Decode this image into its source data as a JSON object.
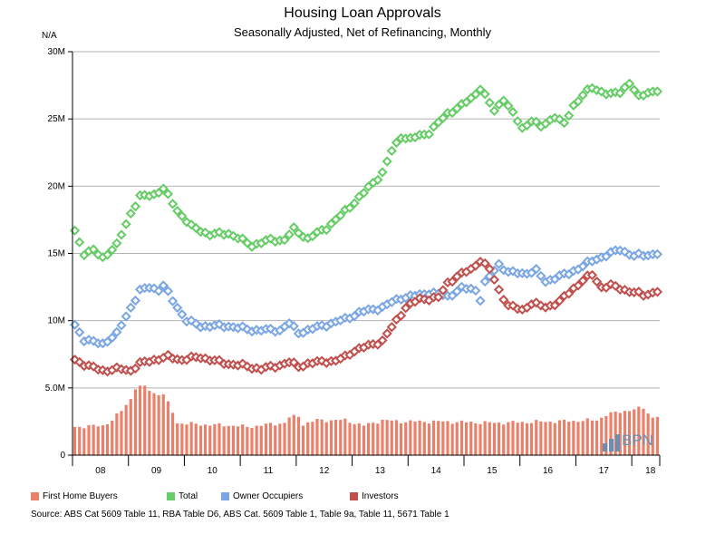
{
  "chart_data": {
    "type": "line",
    "title": "Housing Loan Approvals",
    "subtitle": "Seasonally Adjusted, Net of Refinancing, Monthly",
    "ylabel": "N/A",
    "ylim": [
      0,
      30000000
    ],
    "yticks": [
      {
        "value": 0,
        "label": "0"
      },
      {
        "value": 5000000,
        "label": "5.0M"
      },
      {
        "value": 10000000,
        "label": "10M"
      },
      {
        "value": 15000000,
        "label": "15M"
      },
      {
        "value": 20000000,
        "label": "20M"
      },
      {
        "value": 25000000,
        "label": "25M"
      },
      {
        "value": 30000000,
        "label": "30M"
      }
    ],
    "x_start": "2007-07",
    "n_months": 126,
    "xticks": [
      {
        "label": "08",
        "month_index": 6
      },
      {
        "label": "09",
        "month_index": 18
      },
      {
        "label": "10",
        "month_index": 30
      },
      {
        "label": "11",
        "month_index": 42
      },
      {
        "label": "12",
        "month_index": 54
      },
      {
        "label": "13",
        "month_index": 66
      },
      {
        "label": "14",
        "month_index": 78
      },
      {
        "label": "15",
        "month_index": 90
      },
      {
        "label": "16",
        "month_index": 102
      },
      {
        "label": "17",
        "month_index": 114
      },
      {
        "label": "18",
        "month_index": 124
      }
    ],
    "series": [
      {
        "name": "First Home Buyers",
        "style": "bar",
        "color": "#e8806a",
        "anchors": [
          [
            0,
            2.1
          ],
          [
            6,
            2.2
          ],
          [
            8,
            2.6
          ],
          [
            10,
            3.3
          ],
          [
            12,
            4.2
          ],
          [
            13,
            5.0
          ],
          [
            15,
            5.1
          ],
          [
            17,
            4.6
          ],
          [
            19,
            4.5
          ],
          [
            21,
            3.2
          ],
          [
            22,
            2.4
          ],
          [
            26,
            2.3
          ],
          [
            34,
            2.2
          ],
          [
            37,
            2.1
          ],
          [
            42,
            2.3
          ],
          [
            45,
            2.4
          ],
          [
            46,
            2.8
          ],
          [
            48,
            2.9
          ],
          [
            49,
            2.3
          ],
          [
            52,
            2.6
          ],
          [
            58,
            2.6
          ],
          [
            62,
            2.2
          ],
          [
            66,
            2.6
          ],
          [
            70,
            2.5
          ],
          [
            78,
            2.5
          ],
          [
            90,
            2.4
          ],
          [
            102,
            2.5
          ],
          [
            112,
            2.6
          ],
          [
            114,
            3.0
          ],
          [
            118,
            3.3
          ],
          [
            122,
            3.5
          ],
          [
            124,
            2.8
          ],
          [
            125,
            2.9
          ]
        ]
      },
      {
        "name": "Total",
        "style": "diamond",
        "color": "#66cc66",
        "anchors": [
          [
            0,
            16.7
          ],
          [
            2,
            15.0
          ],
          [
            4,
            15.2
          ],
          [
            6,
            14.7
          ],
          [
            9,
            15.6
          ],
          [
            12,
            18.0
          ],
          [
            14,
            19.2
          ],
          [
            17,
            19.4
          ],
          [
            19,
            19.8
          ],
          [
            22,
            18.2
          ],
          [
            25,
            17.0
          ],
          [
            29,
            16.4
          ],
          [
            33,
            16.5
          ],
          [
            38,
            15.6
          ],
          [
            42,
            16.0
          ],
          [
            45,
            16.0
          ],
          [
            47,
            16.8
          ],
          [
            50,
            16.1
          ],
          [
            54,
            16.9
          ],
          [
            57,
            17.8
          ],
          [
            62,
            19.5
          ],
          [
            66,
            21.0
          ],
          [
            68,
            22.6
          ],
          [
            70,
            23.7
          ],
          [
            72,
            23.5
          ],
          [
            76,
            24.0
          ],
          [
            80,
            25.4
          ],
          [
            83,
            26.0
          ],
          [
            85,
            26.5
          ],
          [
            87,
            27.3
          ],
          [
            90,
            25.6
          ],
          [
            92,
            26.5
          ],
          [
            96,
            24.3
          ],
          [
            98,
            24.9
          ],
          [
            100,
            24.4
          ],
          [
            103,
            25.2
          ],
          [
            105,
            24.6
          ],
          [
            107,
            26.0
          ],
          [
            109,
            26.8
          ],
          [
            111,
            27.3
          ],
          [
            115,
            26.8
          ],
          [
            117,
            27.0
          ],
          [
            119,
            27.7
          ],
          [
            121,
            26.6
          ],
          [
            123,
            27.0
          ],
          [
            125,
            27.1
          ]
        ]
      },
      {
        "name": "Owner Occupiers",
        "style": "diamond",
        "color": "#7aa6e3",
        "anchors": [
          [
            0,
            9.7
          ],
          [
            2,
            8.6
          ],
          [
            4,
            8.4
          ],
          [
            6,
            8.3
          ],
          [
            9,
            9.0
          ],
          [
            12,
            11.0
          ],
          [
            14,
            12.2
          ],
          [
            16,
            12.5
          ],
          [
            18,
            12.3
          ],
          [
            19,
            12.6
          ],
          [
            21,
            11.5
          ],
          [
            24,
            10.0
          ],
          [
            27,
            9.6
          ],
          [
            33,
            9.6
          ],
          [
            38,
            9.3
          ],
          [
            44,
            9.3
          ],
          [
            46,
            9.8
          ],
          [
            48,
            9.1
          ],
          [
            52,
            9.5
          ],
          [
            55,
            9.8
          ],
          [
            58,
            10.1
          ],
          [
            61,
            10.6
          ],
          [
            66,
            11.0
          ],
          [
            70,
            11.7
          ],
          [
            74,
            11.9
          ],
          [
            76,
            12.1
          ],
          [
            80,
            11.8
          ],
          [
            83,
            12.4
          ],
          [
            86,
            12.3
          ],
          [
            87,
            11.6
          ],
          [
            88,
            12.8
          ],
          [
            91,
            14.2
          ],
          [
            93,
            13.6
          ],
          [
            96,
            13.5
          ],
          [
            99,
            13.7
          ],
          [
            101,
            12.9
          ],
          [
            103,
            13.2
          ],
          [
            106,
            13.5
          ],
          [
            108,
            13.9
          ],
          [
            112,
            14.6
          ],
          [
            115,
            15.0
          ],
          [
            117,
            15.3
          ],
          [
            120,
            14.8
          ],
          [
            123,
            14.9
          ],
          [
            125,
            15.0
          ]
        ]
      },
      {
        "name": "Investors",
        "style": "diamond",
        "color": "#c0504d",
        "anchors": [
          [
            0,
            7.1
          ],
          [
            3,
            6.6
          ],
          [
            6,
            6.3
          ],
          [
            10,
            6.4
          ],
          [
            12,
            6.3
          ],
          [
            14,
            6.8
          ],
          [
            17,
            7.1
          ],
          [
            20,
            7.3
          ],
          [
            23,
            7.1
          ],
          [
            27,
            7.3
          ],
          [
            30,
            7.0
          ],
          [
            33,
            6.8
          ],
          [
            37,
            6.6
          ],
          [
            40,
            6.4
          ],
          [
            44,
            6.7
          ],
          [
            46,
            6.9
          ],
          [
            48,
            6.6
          ],
          [
            50,
            6.8
          ],
          [
            54,
            7.0
          ],
          [
            56,
            7.0
          ],
          [
            58,
            7.3
          ],
          [
            60,
            7.8
          ],
          [
            62,
            8.0
          ],
          [
            66,
            8.5
          ],
          [
            68,
            9.5
          ],
          [
            71,
            11.0
          ],
          [
            74,
            11.6
          ],
          [
            78,
            11.7
          ],
          [
            80,
            12.8
          ],
          [
            82,
            13.3
          ],
          [
            85,
            13.8
          ],
          [
            87,
            14.5
          ],
          [
            89,
            13.8
          ],
          [
            91,
            12.3
          ],
          [
            93,
            11.1
          ],
          [
            96,
            10.8
          ],
          [
            98,
            11.3
          ],
          [
            101,
            11.0
          ],
          [
            104,
            11.4
          ],
          [
            107,
            12.4
          ],
          [
            109,
            13.0
          ],
          [
            111,
            13.4
          ],
          [
            113,
            12.5
          ],
          [
            115,
            12.6
          ],
          [
            117,
            12.4
          ],
          [
            119,
            12.2
          ],
          [
            122,
            11.9
          ],
          [
            125,
            12.2
          ]
        ]
      }
    ]
  },
  "legend": [
    {
      "label": "First Home Buyers",
      "color": "#e8806a"
    },
    {
      "label": "Total",
      "color": "#66cc66"
    },
    {
      "label": "Owner Occupiers",
      "color": "#7aa6e3"
    },
    {
      "label": "Investors",
      "color": "#c0504d"
    }
  ],
  "source": "Source: ABS Cat 5609 Table 11, RBA Table D6, ABS Cat. 5609 Table 1, Table 9a, Table 11, 5671 Table 1",
  "logo": {
    "text": "BPN",
    "color": "#6a8fb3"
  }
}
